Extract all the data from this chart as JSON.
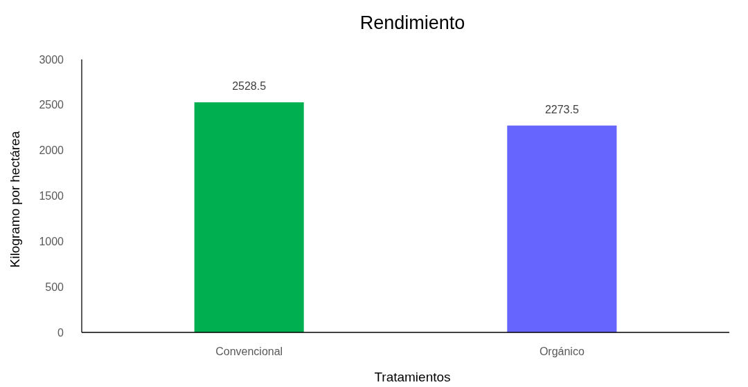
{
  "chart_data": {
    "type": "bar",
    "title": "Rendimiento",
    "xlabel": "Tratamientos",
    "ylabel": "Kilogramo por hectárea",
    "categories": [
      "Convencional",
      "Orgánico"
    ],
    "values": [
      2528.5,
      2273.5
    ],
    "colors": [
      "#00b050",
      "#6666ff"
    ],
    "ylim": [
      0,
      3000
    ],
    "yticks": [
      0,
      500,
      1000,
      1500,
      2000,
      2500,
      3000
    ],
    "data_labels": true
  }
}
